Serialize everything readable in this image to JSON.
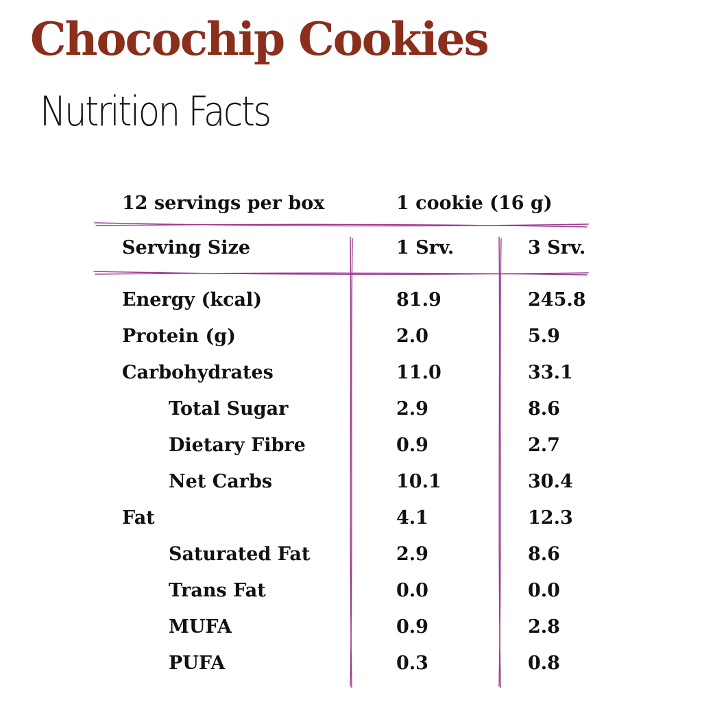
{
  "title": "Chocochip Cookies",
  "subtitle": "Nutrition Facts",
  "colors": {
    "title": "#8b2e1c",
    "rules": "#9b3a8f",
    "text": "#111111"
  },
  "servings": {
    "per_box": "12 servings per box",
    "size": "1 cookie (16 g)"
  },
  "header": {
    "label": "Serving Size",
    "col1": "1 Srv.",
    "col2": "3 Srv."
  },
  "rows": [
    {
      "name": "Energy (kcal)",
      "srv1": "81.9",
      "srv3": "245.8"
    },
    {
      "name": "Protein (g)",
      "srv1": "2.0",
      "srv3": "5.9"
    },
    {
      "name": "Carbohydrates",
      "srv1": "11.0",
      "srv3": "33.1"
    },
    {
      "name": "Total Sugar",
      "srv1": "2.9",
      "srv3": "8.6"
    },
    {
      "name": "Dietary Fibre",
      "srv1": "0.9",
      "srv3": "2.7"
    },
    {
      "name": "Net Carbs",
      "srv1": "10.1",
      "srv3": "30.4"
    },
    {
      "name": "Fat",
      "srv1": "4.1",
      "srv3": "12.3"
    },
    {
      "name": "Saturated Fat",
      "srv1": "2.9",
      "srv3": "8.6"
    },
    {
      "name": "Trans Fat",
      "srv1": "0.0",
      "srv3": "0.0"
    },
    {
      "name": "MUFA",
      "srv1": "0.9",
      "srv3": "2.8"
    },
    {
      "name": "PUFA",
      "srv1": "0.3",
      "srv3": "0.8"
    }
  ]
}
